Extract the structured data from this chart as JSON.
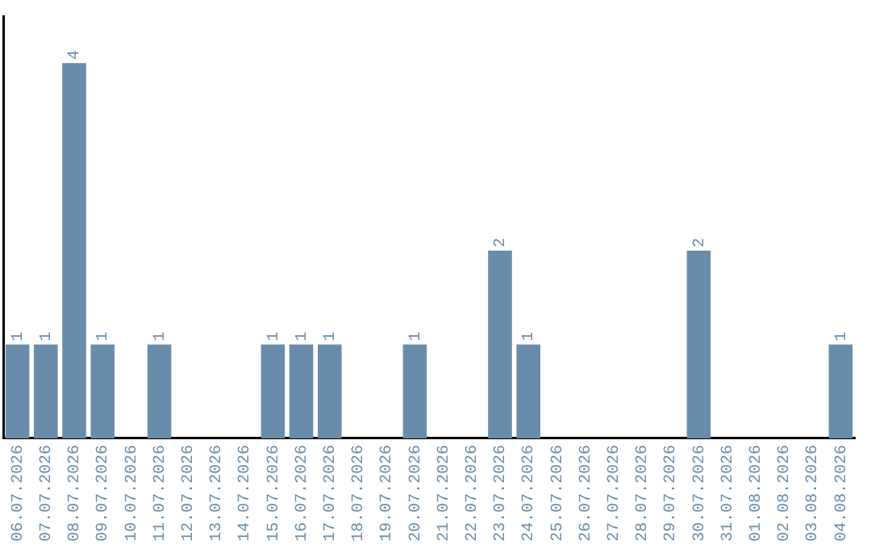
{
  "chart_data": {
    "type": "bar",
    "categories": [
      "06.07.2026",
      "07.07.2026",
      "08.07.2026",
      "09.07.2026",
      "10.07.2026",
      "11.07.2026",
      "12.07.2026",
      "13.07.2026",
      "14.07.2026",
      "15.07.2026",
      "16.07.2026",
      "17.07.2026",
      "18.07.2026",
      "19.07.2026",
      "20.07.2026",
      "21.07.2026",
      "22.07.2026",
      "23.07.2026",
      "24.07.2026",
      "25.07.2026",
      "26.07.2026",
      "27.07.2026",
      "28.07.2026",
      "29.07.2026",
      "30.07.2026",
      "31.07.2026",
      "01.08.2026",
      "02.08.2026",
      "03.08.2026",
      "04.08.2026"
    ],
    "values": [
      1,
      1,
      4,
      1,
      0,
      1,
      0,
      0,
      0,
      1,
      1,
      1,
      0,
      0,
      1,
      0,
      0,
      2,
      1,
      0,
      0,
      0,
      0,
      0,
      2,
      0,
      0,
      0,
      0,
      1
    ],
    "value_labels": [
      "1",
      "1",
      "4",
      "1",
      null,
      "1",
      null,
      null,
      null,
      "1",
      "1",
      "1",
      null,
      null,
      "1",
      null,
      null,
      "2",
      "1",
      null,
      null,
      null,
      null,
      null,
      "2",
      null,
      null,
      null,
      null,
      "1"
    ],
    "color": "#6a8cab",
    "tick_labels": "x",
    "grid": false,
    "legend": false
  }
}
